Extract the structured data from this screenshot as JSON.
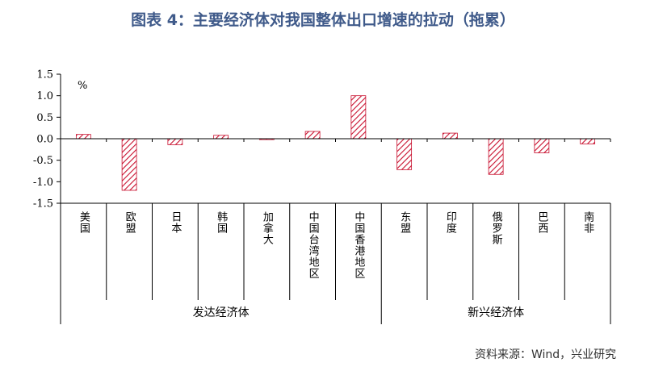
{
  "title": "图表 4：主要经济体对我国整体出口增速的拉动（拖累）",
  "source": "资料来源：Wind，兴业研究",
  "chart_data": {
    "type": "bar",
    "unit_label": "%",
    "ylim": [
      -1.5,
      1.5
    ],
    "yticks": [
      1.5,
      1.0,
      0.5,
      0.0,
      -0.5,
      -1.0,
      -1.5
    ],
    "ytick_labels": [
      "1.5",
      "1.0",
      "0.5",
      "0.0",
      "-0.5",
      "-1.0",
      "-1.5"
    ],
    "categories": [
      "美国",
      "欧盟",
      "日本",
      "韩国",
      "加拿大",
      "中国台湾地区",
      "中国香港地区",
      "东盟",
      "印度",
      "俄罗斯",
      "巴西",
      "南非"
    ],
    "values": [
      0.1,
      -1.2,
      -0.14,
      0.08,
      -0.02,
      0.17,
      1.0,
      -0.72,
      0.13,
      -0.83,
      -0.33,
      -0.12
    ],
    "groups": [
      {
        "label": "发达经济体",
        "count": 7
      },
      {
        "label": "新兴经济体",
        "count": 5
      }
    ],
    "bar_color": "#c8102e",
    "fill_pattern": "diagonal-hatch",
    "grid": false
  }
}
